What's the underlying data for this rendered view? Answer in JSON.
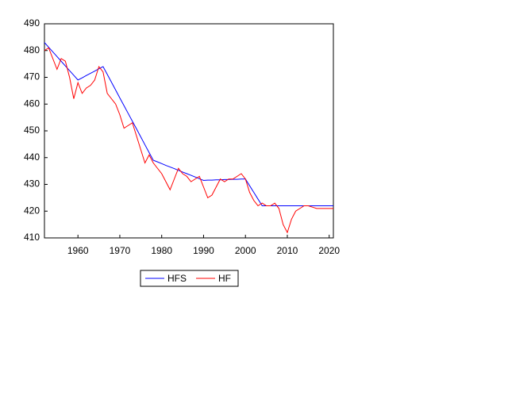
{
  "chart_data": {
    "type": "line",
    "x": [
      1952,
      1953,
      1954,
      1955,
      1956,
      1957,
      1958,
      1959,
      1960,
      1961,
      1962,
      1963,
      1964,
      1965,
      1966,
      1967,
      1968,
      1969,
      1970,
      1971,
      1972,
      1973,
      1974,
      1975,
      1976,
      1977,
      1978,
      1979,
      1980,
      1981,
      1982,
      1983,
      1984,
      1985,
      1986,
      1987,
      1988,
      1989,
      1990,
      1991,
      1992,
      1993,
      1994,
      1995,
      1996,
      1997,
      1998,
      1999,
      2000,
      2001,
      2002,
      2003,
      2004,
      2005,
      2006,
      2007,
      2008,
      2009,
      2010,
      2011,
      2012,
      2013,
      2014,
      2015,
      2016,
      2017,
      2018,
      2019,
      2020,
      2021
    ],
    "series": [
      {
        "name": "HFS",
        "color": "#0000ff",
        "values": [
          483,
          481.25,
          479.5,
          477.75,
          476,
          474.25,
          472.5,
          470.75,
          469,
          469.8,
          470.7,
          471.5,
          472.3,
          473.2,
          474,
          471.1,
          468.2,
          465.25,
          462.3,
          459.4,
          456.5,
          453.6,
          450.7,
          447.75,
          444.8,
          441.9,
          439,
          438.4,
          437.75,
          437.1,
          436.5,
          435.9,
          435.25,
          434.6,
          434,
          433.4,
          432.75,
          432.1,
          431.5,
          431.6,
          431.6,
          431.7,
          431.7,
          431.8,
          431.8,
          431.9,
          431.9,
          432,
          432,
          429.5,
          427,
          424.5,
          422,
          422,
          422,
          422,
          422,
          422,
          422,
          422,
          422,
          422,
          422,
          422,
          422,
          422,
          422,
          422,
          422,
          422
        ]
      },
      {
        "name": "HF",
        "color": "#ff0000",
        "values": [
          480,
          481,
          477,
          473,
          477,
          476,
          470,
          462,
          468,
          464,
          466,
          467,
          469,
          474,
          472,
          464,
          462,
          460,
          456,
          451,
          452,
          453,
          448,
          443,
          438,
          441,
          438,
          436,
          434,
          431,
          428,
          432,
          436,
          434,
          433,
          431,
          432,
          433,
          429,
          425,
          426,
          429,
          432,
          431,
          432,
          432,
          433,
          434,
          432,
          427,
          424,
          422,
          423,
          422,
          422,
          423,
          421,
          415,
          412,
          417,
          420,
          421,
          422,
          422,
          421.5,
          421,
          421,
          421,
          421,
          421
        ]
      }
    ],
    "xlim": [
      1952,
      2021
    ],
    "xticks": [
      1960,
      1970,
      1980,
      1990,
      2000,
      2010,
      2020
    ],
    "ylim": [
      410,
      490
    ],
    "yticks": [
      410,
      420,
      430,
      440,
      450,
      460,
      470,
      480,
      490
    ]
  }
}
